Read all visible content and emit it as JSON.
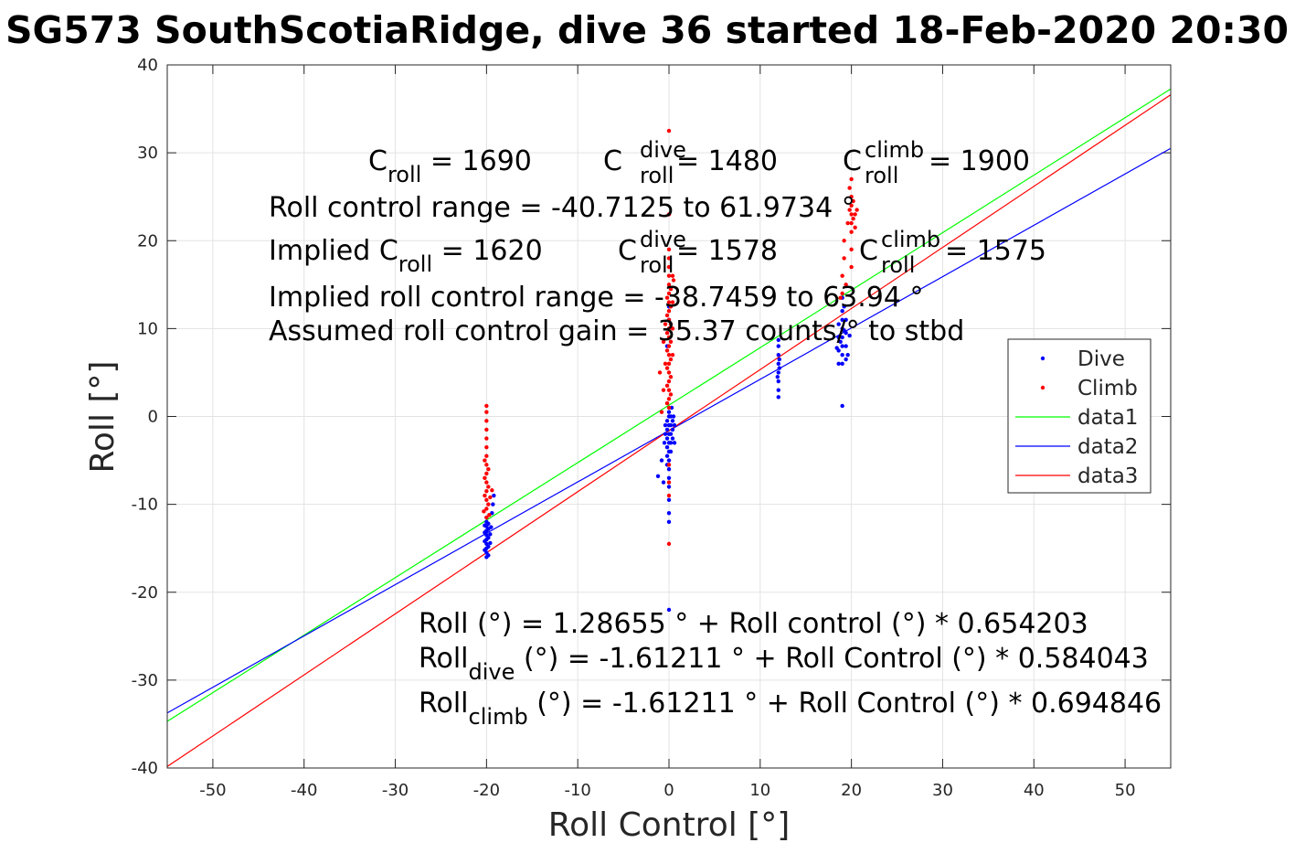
{
  "chart_data": {
    "type": "scatter",
    "title": "SG573 SouthScotiaRidge, dive 36 started 18-Feb-2020 20:30",
    "xlabel": "Roll Control [°]",
    "ylabel": "Roll [°]",
    "xlim": [
      -55,
      55
    ],
    "ylim": [
      -40,
      40
    ],
    "x_ticks": [
      -50,
      -40,
      -30,
      -20,
      -10,
      0,
      10,
      20,
      30,
      40,
      50
    ],
    "y_ticks": [
      -40,
      -30,
      -20,
      -10,
      0,
      10,
      20,
      30,
      40
    ],
    "grid": true,
    "legend_position": "right",
    "series": [
      {
        "name": "Dive",
        "kind": "points",
        "color": "#0000ff",
        "points": [
          [
            -20,
            -16
          ],
          [
            -20,
            -15.5
          ],
          [
            -20,
            -15
          ],
          [
            -20,
            -14.5
          ],
          [
            -20,
            -14
          ],
          [
            -20,
            -13.5
          ],
          [
            -20,
            -13
          ],
          [
            -20,
            -12.5
          ],
          [
            -20,
            -12
          ],
          [
            -20,
            -11.5
          ],
          [
            -19.8,
            -15.8
          ],
          [
            -19.8,
            -14.8
          ],
          [
            -19.8,
            -13.8
          ],
          [
            -19.8,
            -12.8
          ],
          [
            -19.8,
            -12.2
          ],
          [
            -20.2,
            -15.2
          ],
          [
            -20.2,
            -14.2
          ],
          [
            -20.2,
            -13.2
          ],
          [
            -20.2,
            -12.4
          ],
          [
            -19.6,
            -14.4
          ],
          [
            -19.6,
            -13.4
          ],
          [
            -19.5,
            -12.6
          ],
          [
            -19.4,
            -11
          ],
          [
            -19.3,
            -10
          ],
          [
            -19.2,
            -9
          ],
          [
            0,
            -22
          ],
          [
            0,
            -12
          ],
          [
            0,
            -11
          ],
          [
            0,
            -9.5
          ],
          [
            0,
            -8
          ],
          [
            0,
            -7
          ],
          [
            0,
            -6
          ],
          [
            0,
            -5
          ],
          [
            0,
            -4
          ],
          [
            0,
            -3
          ],
          [
            0,
            -2
          ],
          [
            0,
            -1
          ],
          [
            0,
            0
          ],
          [
            0,
            0.5
          ],
          [
            -0.2,
            -5.5
          ],
          [
            -0.2,
            -4.5
          ],
          [
            -0.2,
            -3.5
          ],
          [
            -0.2,
            -2.5
          ],
          [
            -0.2,
            -1.5
          ],
          [
            -0.2,
            -0.5
          ],
          [
            0.2,
            -4
          ],
          [
            0.2,
            -3
          ],
          [
            0.2,
            -2
          ],
          [
            0.2,
            -1
          ],
          [
            0.2,
            0
          ],
          [
            0.4,
            -2.5
          ],
          [
            0.4,
            -1.5
          ],
          [
            0.4,
            -0.5
          ],
          [
            0.5,
            0
          ],
          [
            0.6,
            -1
          ],
          [
            0.6,
            -3
          ],
          [
            -0.4,
            -2
          ],
          [
            -0.4,
            -1
          ],
          [
            -0.5,
            -3
          ],
          [
            -0.8,
            -5
          ],
          [
            -1.2,
            -6.8
          ],
          [
            -0.6,
            -7.5
          ],
          [
            0,
            11
          ],
          [
            0,
            12.5
          ],
          [
            -0.2,
            8
          ],
          [
            0.3,
            1
          ],
          [
            12,
            2.2
          ],
          [
            12,
            3
          ],
          [
            12,
            4
          ],
          [
            12,
            5
          ],
          [
            12,
            6
          ],
          [
            12,
            7
          ],
          [
            12,
            8
          ],
          [
            12,
            8.7
          ],
          [
            11.9,
            4.5
          ],
          [
            12.1,
            5.5
          ],
          [
            12.1,
            6.5
          ],
          [
            19,
            1.2
          ],
          [
            19,
            6
          ],
          [
            19,
            7
          ],
          [
            19,
            8
          ],
          [
            19,
            9
          ],
          [
            19,
            10
          ],
          [
            19,
            11
          ],
          [
            19,
            12
          ],
          [
            19,
            13.5
          ],
          [
            18.6,
            6
          ],
          [
            18.6,
            7.5
          ],
          [
            18.6,
            9
          ],
          [
            18.6,
            10.5
          ],
          [
            19.4,
            6.5
          ],
          [
            19.4,
            8
          ],
          [
            19.4,
            9.5
          ],
          [
            19.4,
            11
          ],
          [
            18.8,
            8.5
          ],
          [
            19.2,
            9.8
          ],
          [
            19.6,
            7
          ],
          [
            18.4,
            7.8
          ],
          [
            19.8,
            9.2
          ],
          [
            19.2,
            12.5
          ]
        ]
      },
      {
        "name": "Climb",
        "kind": "points",
        "color": "#ff0000",
        "points": [
          [
            -20,
            1.2
          ],
          [
            -20,
            0.5
          ],
          [
            -20,
            -0.5
          ],
          [
            -20,
            -1.5
          ],
          [
            -20,
            -2.5
          ],
          [
            -20,
            -3.5
          ],
          [
            -20,
            -4.5
          ],
          [
            -20,
            -5.5
          ],
          [
            -20,
            -6.5
          ],
          [
            -20,
            -7.5
          ],
          [
            -20,
            -8.5
          ],
          [
            -20,
            -9.5
          ],
          [
            -20,
            -10.5
          ],
          [
            -20,
            -11.5
          ],
          [
            -20.2,
            -5
          ],
          [
            -20.2,
            -7
          ],
          [
            -20.2,
            -9
          ],
          [
            -19.8,
            -6
          ],
          [
            -19.8,
            -8
          ],
          [
            -19.8,
            -10
          ],
          [
            -19.6,
            -9.2
          ],
          [
            -19.4,
            -8.4
          ],
          [
            -20.3,
            -10.8
          ],
          [
            -19.7,
            -11.2
          ],
          [
            0,
            32.5
          ],
          [
            0,
            23
          ],
          [
            0,
            19
          ],
          [
            0,
            18
          ],
          [
            0,
            17
          ],
          [
            0,
            16
          ],
          [
            0,
            15
          ],
          [
            0,
            14
          ],
          [
            0,
            13
          ],
          [
            0,
            12
          ],
          [
            0,
            11
          ],
          [
            0,
            10
          ],
          [
            0,
            9
          ],
          [
            0,
            8
          ],
          [
            0,
            7
          ],
          [
            0,
            6
          ],
          [
            0,
            5
          ],
          [
            0,
            4
          ],
          [
            0,
            3
          ],
          [
            0,
            2
          ],
          [
            0,
            1
          ],
          [
            -0.2,
            13.5
          ],
          [
            -0.2,
            11.5
          ],
          [
            -0.2,
            9.5
          ],
          [
            -0.2,
            7.5
          ],
          [
            -0.2,
            5.5
          ],
          [
            -0.2,
            3.5
          ],
          [
            -0.2,
            1.5
          ],
          [
            0.2,
            14.5
          ],
          [
            0.2,
            12.5
          ],
          [
            0.2,
            10.5
          ],
          [
            0.2,
            8.5
          ],
          [
            0.2,
            6.5
          ],
          [
            0.2,
            4.5
          ],
          [
            0.2,
            2.5
          ],
          [
            0.4,
            16
          ],
          [
            0.4,
            13
          ],
          [
            0.4,
            10
          ],
          [
            0.4,
            7
          ],
          [
            0.5,
            15.5
          ],
          [
            -0.4,
            10.5
          ],
          [
            -0.4,
            6
          ],
          [
            -0.6,
            3
          ],
          [
            -0.8,
            0.5
          ],
          [
            -1,
            5
          ],
          [
            -0.6,
            8.5
          ],
          [
            0,
            -14.5
          ],
          [
            0,
            -9
          ],
          [
            0,
            -7.5
          ],
          [
            0,
            -5.5
          ],
          [
            20,
            27
          ],
          [
            20,
            25
          ],
          [
            20,
            24
          ],
          [
            20,
            23
          ],
          [
            20,
            22
          ],
          [
            20,
            21
          ],
          [
            20,
            19
          ],
          [
            20,
            17
          ],
          [
            19.8,
            26
          ],
          [
            19.8,
            23.5
          ],
          [
            20.2,
            24.5
          ],
          [
            20.2,
            22.5
          ],
          [
            20.4,
            23
          ],
          [
            20.4,
            21.5
          ],
          [
            19.6,
            22
          ],
          [
            19.2,
            20
          ],
          [
            19.2,
            18
          ],
          [
            19,
            16
          ],
          [
            19,
            14
          ],
          [
            19.4,
            15
          ],
          [
            18.8,
            13.5
          ],
          [
            20.6,
            23.5
          ]
        ]
      },
      {
        "name": "data1",
        "kind": "line",
        "color": "#00ff00",
        "slope": 0.654203,
        "intercept": 1.28655
      },
      {
        "name": "data2",
        "kind": "line",
        "color": "#0000ff",
        "slope": 0.584043,
        "intercept": -1.61211
      },
      {
        "name": "data3",
        "kind": "line",
        "color": "#ff0000",
        "slope": 0.694846,
        "intercept": -1.61211
      }
    ],
    "annotations": {
      "c_roll_label": "C",
      "c_roll_sub": "roll",
      "c_roll_value": " = 1690",
      "c_dive_sup": "dive",
      "c_dive_sub": "roll",
      "c_dive_value": " = 1480",
      "c_climb_sup": "climb",
      "c_climb_sub": "roll",
      "c_climb_value": " = 1900",
      "roll_range": "Roll control range = -40.7125 to 61.9734 °",
      "implied_prefix": "Implied C",
      "implied_sub": "roll",
      "implied_value": " = 1620",
      "implied_dive_sup": "dive",
      "implied_dive_sub": "roll",
      "implied_dive_value": " = 1578",
      "implied_climb_sup": "climb",
      "implied_climb_sub": "roll",
      "implied_climb_value": " = 1575",
      "implied_range": "Implied roll control range = -38.7459 to 63.94 °",
      "gain": "Assumed roll control gain = 35.37 counts/° to stbd",
      "fit_all": "Roll (°) = 1.28655 ° + Roll control (°) * 0.654203",
      "fit_dive_a": "Roll",
      "fit_dive_sub": "dive",
      "fit_dive_b": " (°) = -1.61211 ° + Roll Control (°) * 0.584043",
      "fit_climb_a": "Roll",
      "fit_climb_sub": "climb",
      "fit_climb_b": " (°) = -1.61211 ° + Roll Control (°) * 0.694846"
    }
  }
}
